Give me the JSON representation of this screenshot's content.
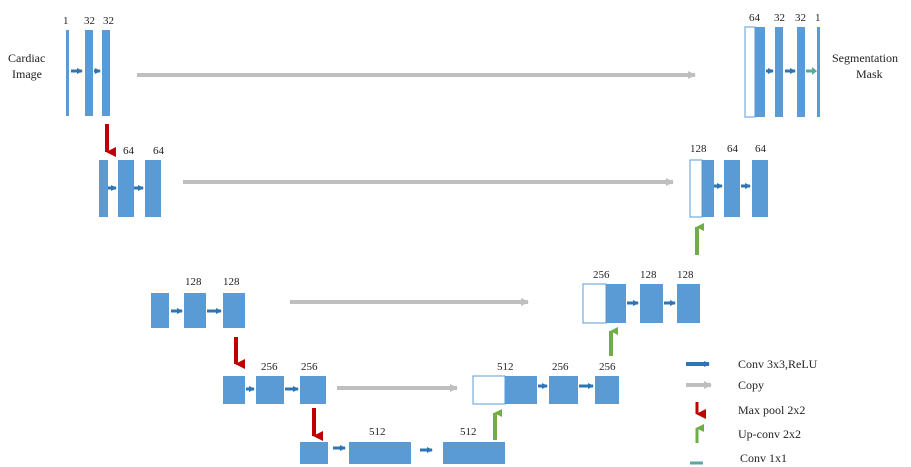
{
  "input_label_line1": "Cardiac",
  "input_label_line2": "Image",
  "output_label_line1": "Segmentation",
  "output_label_line2": "Mask",
  "channels": {
    "enc1": [
      "1",
      "32",
      "32"
    ],
    "enc2": [
      "64",
      "64"
    ],
    "enc3": [
      "128",
      "128"
    ],
    "enc4": [
      "256",
      "256"
    ],
    "bottom": [
      "512",
      "512"
    ],
    "dec4": [
      "512",
      "256",
      "256"
    ],
    "dec3": [
      "256",
      "128",
      "128"
    ],
    "dec2": [
      "128",
      "64",
      "64"
    ],
    "dec1": [
      "64",
      "32",
      "32",
      "1"
    ]
  },
  "legend": {
    "conv": "Conv 3x3,ReLU",
    "copy": "Copy",
    "maxpool": "Max pool 2x2",
    "upconv": "Up-conv 2x2",
    "conv1x1": "Conv 1x1"
  },
  "colors": {
    "block": "#5b9bd5",
    "conv_arrow": "#2e75b6",
    "copy_arrow": "#bfbfbf",
    "maxpool_arrow": "#c00000",
    "upconv_arrow": "#70ad47",
    "conv1x1_arrow": "#5aa7a0"
  }
}
